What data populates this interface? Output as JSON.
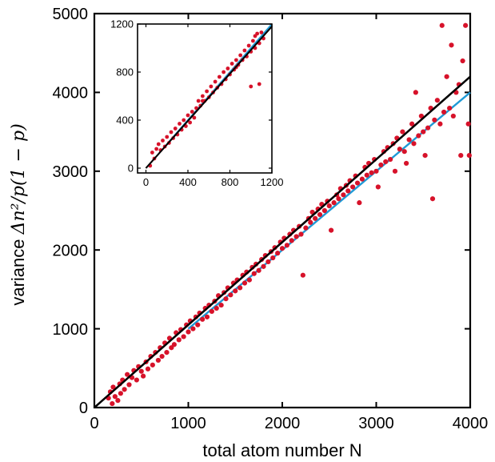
{
  "chart_data": [
    {
      "type": "scatter",
      "title": "",
      "xlabel": "total atom number N",
      "ylabel_prefix": "variance ",
      "ylabel_math": "Δn²/p(1 − p)",
      "xlim": [
        0,
        4000
      ],
      "ylim": [
        0,
        5000
      ],
      "xticks": [
        0,
        1000,
        2000,
        3000,
        4000
      ],
      "yticks": [
        0,
        1000,
        2000,
        3000,
        4000,
        5000
      ],
      "xtick_labels": [
        "0",
        "1000",
        "2000",
        "3000",
        "4000"
      ],
      "ytick_labels": [
        "0",
        "1000",
        "2000",
        "3000",
        "4000",
        "5000"
      ],
      "grid": false,
      "colors": {
        "points": "#d7122a",
        "fit_line": "#000000",
        "reference_line": "#1f9ad6"
      },
      "lines": [
        {
          "role": "fit",
          "color": "#000000",
          "x": [
            0,
            4000
          ],
          "y": [
            0,
            4200
          ]
        },
        {
          "role": "reference",
          "color": "#1f9ad6",
          "x": [
            1000,
            4000
          ],
          "y": [
            1000,
            4000
          ]
        }
      ],
      "points": [
        [
          150,
          120
        ],
        [
          170,
          200
        ],
        [
          190,
          50
        ],
        [
          200,
          260
        ],
        [
          220,
          140
        ],
        [
          250,
          90
        ],
        [
          270,
          300
        ],
        [
          280,
          180
        ],
        [
          300,
          350
        ],
        [
          320,
          230
        ],
        [
          350,
          420
        ],
        [
          370,
          290
        ],
        [
          400,
          380
        ],
        [
          420,
          470
        ],
        [
          450,
          350
        ],
        [
          470,
          520
        ],
        [
          500,
          460
        ],
        [
          520,
          400
        ],
        [
          550,
          580
        ],
        [
          570,
          490
        ],
        [
          600,
          650
        ],
        [
          620,
          540
        ],
        [
          650,
          700
        ],
        [
          680,
          600
        ],
        [
          700,
          760
        ],
        [
          720,
          650
        ],
        [
          750,
          820
        ],
        [
          770,
          700
        ],
        [
          800,
          880
        ],
        [
          820,
          760
        ],
        [
          850,
          800
        ],
        [
          870,
          950
        ],
        [
          900,
          860
        ],
        [
          920,
          990
        ],
        [
          950,
          900
        ],
        [
          980,
          1050
        ],
        [
          1000,
          960
        ],
        [
          1020,
          1100
        ],
        [
          1050,
          1000
        ],
        [
          1080,
          1150
        ],
        [
          1100,
          1050
        ],
        [
          1120,
          1200
        ],
        [
          1150,
          1120
        ],
        [
          1180,
          1260
        ],
        [
          1200,
          1150
        ],
        [
          1220,
          1300
        ],
        [
          1250,
          1220
        ],
        [
          1280,
          1350
        ],
        [
          1300,
          1260
        ],
        [
          1320,
          1420
        ],
        [
          1350,
          1300
        ],
        [
          1380,
          1460
        ],
        [
          1400,
          1380
        ],
        [
          1420,
          1520
        ],
        [
          1450,
          1430
        ],
        [
          1480,
          1580
        ],
        [
          1500,
          1480
        ],
        [
          1520,
          1620
        ],
        [
          1550,
          1520
        ],
        [
          1580,
          1680
        ],
        [
          1600,
          1580
        ],
        [
          1620,
          1720
        ],
        [
          1650,
          1620
        ],
        [
          1680,
          1780
        ],
        [
          1700,
          1700
        ],
        [
          1720,
          1820
        ],
        [
          1750,
          1740
        ],
        [
          1780,
          1880
        ],
        [
          1800,
          1790
        ],
        [
          1820,
          1930
        ],
        [
          1850,
          1850
        ],
        [
          1880,
          1980
        ],
        [
          1900,
          1900
        ],
        [
          1920,
          2030
        ],
        [
          1950,
          1960
        ],
        [
          1980,
          2100
        ],
        [
          2000,
          2020
        ],
        [
          2020,
          2150
        ],
        [
          2050,
          2060
        ],
        [
          2080,
          2200
        ],
        [
          2100,
          2120
        ],
        [
          2120,
          2250
        ],
        [
          2150,
          2170
        ],
        [
          2180,
          2300
        ],
        [
          2200,
          2200
        ],
        [
          2220,
          1680
        ],
        [
          2250,
          2280
        ],
        [
          2280,
          2400
        ],
        [
          2300,
          2350
        ],
        [
          2320,
          2480
        ],
        [
          2350,
          2400
        ],
        [
          2380,
          2520
        ],
        [
          2400,
          2450
        ],
        [
          2420,
          2580
        ],
        [
          2450,
          2500
        ],
        [
          2480,
          2620
        ],
        [
          2500,
          2560
        ],
        [
          2520,
          2250
        ],
        [
          2550,
          2600
        ],
        [
          2580,
          2700
        ],
        [
          2600,
          2650
        ],
        [
          2620,
          2780
        ],
        [
          2650,
          2700
        ],
        [
          2680,
          2820
        ],
        [
          2700,
          2750
        ],
        [
          2720,
          2880
        ],
        [
          2750,
          2800
        ],
        [
          2780,
          2940
        ],
        [
          2800,
          2850
        ],
        [
          2820,
          2600
        ],
        [
          2850,
          2900
        ],
        [
          2880,
          3050
        ],
        [
          2900,
          2950
        ],
        [
          2920,
          3100
        ],
        [
          2950,
          2980
        ],
        [
          2980,
          3150
        ],
        [
          3000,
          3000
        ],
        [
          3020,
          2800
        ],
        [
          3050,
          3080
        ],
        [
          3080,
          3250
        ],
        [
          3100,
          3120
        ],
        [
          3120,
          3300
        ],
        [
          3150,
          3150
        ],
        [
          3180,
          3350
        ],
        [
          3200,
          3000
        ],
        [
          3220,
          3420
        ],
        [
          3250,
          3280
        ],
        [
          3280,
          3500
        ],
        [
          3300,
          3250
        ],
        [
          3320,
          3100
        ],
        [
          3350,
          3400
        ],
        [
          3380,
          3600
        ],
        [
          3400,
          3350
        ],
        [
          3420,
          4000
        ],
        [
          3450,
          3450
        ],
        [
          3480,
          3700
        ],
        [
          3500,
          3500
        ],
        [
          3520,
          3200
        ],
        [
          3550,
          3550
        ],
        [
          3580,
          3800
        ],
        [
          3600,
          2650
        ],
        [
          3620,
          3650
        ],
        [
          3650,
          3900
        ],
        [
          3680,
          3600
        ],
        [
          3700,
          4850
        ],
        [
          3720,
          3750
        ],
        [
          3750,
          4200
        ],
        [
          3780,
          3800
        ],
        [
          3800,
          4600
        ],
        [
          3820,
          3700
        ],
        [
          3850,
          4000
        ],
        [
          3880,
          4100
        ],
        [
          3900,
          3200
        ],
        [
          3920,
          4400
        ],
        [
          3950,
          4850
        ],
        [
          3980,
          3600
        ],
        [
          3990,
          3200
        ]
      ]
    },
    {
      "type": "scatter",
      "title": "",
      "xlabel": "",
      "ylabel": "",
      "xlim": [
        -80,
        1200
      ],
      "ylim": [
        -40,
        1200
      ],
      "xticks": [
        0,
        400,
        800,
        1200
      ],
      "yticks": [
        0,
        400,
        800,
        1200
      ],
      "xtick_labels": [
        "0",
        "400",
        "800",
        "1200"
      ],
      "ytick_labels": [
        "0",
        "400",
        "800",
        "1200"
      ],
      "grid": false,
      "colors": {
        "points": "#d7122a",
        "fit_line": "#000000",
        "reference_line": "#1f9ad6"
      },
      "lines": [
        {
          "role": "fit",
          "color": "#000000",
          "x": [
            0,
            1200
          ],
          "y": [
            0,
            1180
          ]
        },
        {
          "role": "reference",
          "color": "#1f9ad6",
          "x": [
            200,
            1200
          ],
          "y": [
            200,
            1200
          ]
        }
      ],
      "points": [
        [
          40,
          20
        ],
        [
          60,
          130
        ],
        [
          80,
          80
        ],
        [
          100,
          160
        ],
        [
          120,
          200
        ],
        [
          140,
          150
        ],
        [
          160,
          230
        ],
        [
          180,
          180
        ],
        [
          200,
          260
        ],
        [
          220,
          210
        ],
        [
          240,
          300
        ],
        [
          260,
          250
        ],
        [
          280,
          330
        ],
        [
          300,
          280
        ],
        [
          320,
          370
        ],
        [
          340,
          320
        ],
        [
          360,
          400
        ],
        [
          380,
          350
        ],
        [
          400,
          440
        ],
        [
          420,
          380
        ],
        [
          440,
          470
        ],
        [
          460,
          420
        ],
        [
          480,
          500
        ],
        [
          500,
          560
        ],
        [
          520,
          520
        ],
        [
          540,
          600
        ],
        [
          560,
          560
        ],
        [
          580,
          640
        ],
        [
          600,
          590
        ],
        [
          620,
          680
        ],
        [
          640,
          630
        ],
        [
          660,
          720
        ],
        [
          680,
          670
        ],
        [
          700,
          760
        ],
        [
          720,
          700
        ],
        [
          740,
          800
        ],
        [
          760,
          740
        ],
        [
          780,
          830
        ],
        [
          800,
          780
        ],
        [
          820,
          870
        ],
        [
          840,
          820
        ],
        [
          860,
          900
        ],
        [
          880,
          860
        ],
        [
          900,
          940
        ],
        [
          920,
          900
        ],
        [
          940,
          980
        ],
        [
          960,
          930
        ],
        [
          980,
          1020
        ],
        [
          1000,
          970
        ],
        [
          1020,
          1060
        ],
        [
          1040,
          1000
        ],
        [
          1060,
          1120
        ],
        [
          1080,
          1040
        ],
        [
          1100,
          1130
        ],
        [
          1120,
          1080
        ],
        [
          1000,
          680
        ],
        [
          1080,
          700
        ],
        [
          1040,
          1100
        ],
        [
          860,
          840
        ],
        [
          540,
          560
        ]
      ]
    }
  ]
}
